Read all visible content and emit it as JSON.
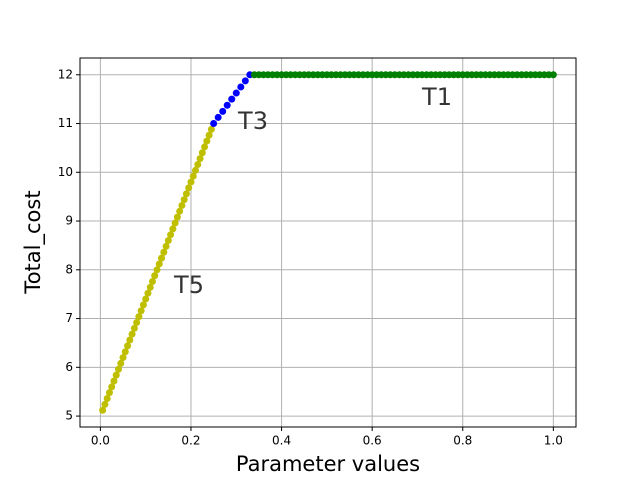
{
  "chart_data": {
    "type": "scatter",
    "x_label": "Parameter values",
    "y_label": "Total_cost",
    "xlim": [
      -0.045,
      1.05
    ],
    "ylim": [
      4.776,
      12.344
    ],
    "xticks": [
      {
        "value": 0,
        "label": "0.0"
      },
      {
        "value": 0.2,
        "label": "0.2"
      },
      {
        "value": 0.4,
        "label": "0.4"
      },
      {
        "value": 0.6,
        "label": "0.6"
      },
      {
        "value": 0.8,
        "label": "0.8"
      },
      {
        "value": 1,
        "label": "1.0"
      }
    ],
    "yticks": [
      5,
      6,
      7,
      8,
      9,
      10,
      11,
      12
    ],
    "grid": true,
    "annotations": [
      "T1",
      "T3",
      "T5"
    ],
    "series": [
      {
        "color": "#bfbf00",
        "x": [
          0.005,
          0.01,
          0.015,
          0.02,
          0.025,
          0.03,
          0.035,
          0.04,
          0.045,
          0.05,
          0.055,
          0.06,
          0.065,
          0.07,
          0.075,
          0.08,
          0.085,
          0.09,
          0.095,
          0.1,
          0.105,
          0.11,
          0.115,
          0.12,
          0.125,
          0.13,
          0.135,
          0.14,
          0.145,
          0.15,
          0.155,
          0.16,
          0.165,
          0.17,
          0.175,
          0.18,
          0.185,
          0.19,
          0.195,
          0.2,
          0.205,
          0.21,
          0.215,
          0.22,
          0.225,
          0.23,
          0.235,
          0.24,
          0.245
        ],
        "values": [
          5.12,
          5.24,
          5.36,
          5.48,
          5.6,
          5.72,
          5.84,
          5.96,
          6.08,
          6.2,
          6.32,
          6.44,
          6.56,
          6.68,
          6.8,
          6.92,
          7.04,
          7.16,
          7.28,
          7.4,
          7.52,
          7.64,
          7.76,
          7.88,
          8.0,
          8.12,
          8.24,
          8.36,
          8.48,
          8.6,
          8.72,
          8.84,
          8.96,
          9.08,
          9.2,
          9.32,
          9.44,
          9.56,
          9.68,
          9.8,
          9.92,
          10.04,
          10.16,
          10.28,
          10.4,
          10.52,
          10.64,
          10.76,
          10.88
        ]
      },
      {
        "color": "#0000ff",
        "x": [
          0.25,
          0.26,
          0.27,
          0.28,
          0.29,
          0.3,
          0.31,
          0.32,
          0.33
        ],
        "values": [
          11.0,
          11.125,
          11.25,
          11.375,
          11.5,
          11.625,
          11.75,
          11.875,
          12.0
        ]
      },
      {
        "color": "#008000",
        "x": [
          0.34,
          0.35,
          0.36,
          0.37,
          0.38,
          0.39,
          0.4,
          0.41,
          0.42,
          0.43,
          0.44,
          0.45,
          0.46,
          0.47,
          0.48,
          0.49,
          0.5,
          0.51,
          0.52,
          0.53,
          0.54,
          0.55,
          0.56,
          0.57,
          0.58,
          0.59,
          0.6,
          0.61,
          0.62,
          0.63,
          0.64,
          0.65,
          0.66,
          0.67,
          0.68,
          0.69,
          0.7,
          0.71,
          0.72,
          0.73,
          0.74,
          0.75,
          0.76,
          0.77,
          0.78,
          0.79,
          0.8,
          0.81,
          0.82,
          0.83,
          0.84,
          0.85,
          0.86,
          0.87,
          0.88,
          0.89,
          0.9,
          0.91,
          0.92,
          0.93,
          0.94,
          0.95,
          0.96,
          0.97,
          0.98,
          0.99,
          1.0
        ],
        "values": [
          12,
          12,
          12,
          12,
          12,
          12,
          12,
          12,
          12,
          12,
          12,
          12,
          12,
          12,
          12,
          12,
          12,
          12,
          12,
          12,
          12,
          12,
          12,
          12,
          12,
          12,
          12,
          12,
          12,
          12,
          12,
          12,
          12,
          12,
          12,
          12,
          12,
          12,
          12,
          12,
          12,
          12,
          12,
          12,
          12,
          12,
          12,
          12,
          12,
          12,
          12,
          12,
          12,
          12,
          12,
          12,
          12,
          12,
          12,
          12,
          12,
          12,
          12,
          12,
          12,
          12,
          12
        ]
      }
    ]
  }
}
